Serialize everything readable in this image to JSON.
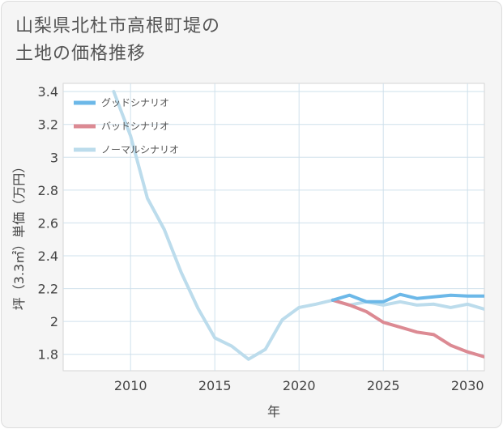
{
  "title_lines": [
    "山梨県北杜市高根町堤の",
    "土地の価格推移"
  ],
  "chart_data": {
    "type": "line",
    "xlabel": "年",
    "ylabel": "坪（3.3㎡）単価（万円）",
    "xlim": [
      2006,
      2031
    ],
    "ylim": [
      1.7,
      3.45
    ],
    "x_ticks": [
      2010,
      2015,
      2020,
      2025,
      2030
    ],
    "y_ticks": [
      1.8,
      2,
      2.2,
      2.4,
      2.6,
      2.8,
      3,
      3.2,
      3.4
    ],
    "x_tick_labels": [
      "2010",
      "2015",
      "2020",
      "2025",
      "2030"
    ],
    "y_tick_labels": [
      "1.8",
      "2",
      "2.2",
      "2.4",
      "2.6",
      "2.8",
      "3",
      "3.2",
      "3.4"
    ],
    "grid": true,
    "legend_position": "top-left",
    "series": [
      {
        "name": "グッドシナリオ",
        "color": "#6cb8e8",
        "x": [
          2022,
          2023,
          2024,
          2025,
          2026,
          2027,
          2028,
          2029,
          2030,
          2031
        ],
        "values": [
          2.13,
          2.16,
          2.12,
          2.12,
          2.165,
          2.14,
          2.15,
          2.16,
          2.155,
          2.155
        ]
      },
      {
        "name": "バッドシナリオ",
        "color": "#dc8a93",
        "x": [
          2022,
          2023,
          2024,
          2025,
          2026,
          2027,
          2028,
          2029,
          2030,
          2031
        ],
        "values": [
          2.13,
          2.1,
          2.06,
          1.995,
          1.965,
          1.935,
          1.92,
          1.855,
          1.815,
          1.785
        ]
      },
      {
        "name": "ノーマルシナリオ",
        "color": "#bcdcec",
        "x": [
          2009,
          2010,
          2011,
          2012,
          2013,
          2014,
          2015,
          2016,
          2017,
          2018,
          2019,
          2020,
          2021,
          2022,
          2023,
          2024,
          2025,
          2026,
          2027,
          2028,
          2029,
          2030,
          2031
        ],
        "values": [
          3.4,
          3.13,
          2.75,
          2.56,
          2.3,
          2.08,
          1.9,
          1.85,
          1.77,
          1.83,
          2.01,
          2.085,
          2.105,
          2.13,
          2.1,
          2.12,
          2.1,
          2.12,
          2.1,
          2.105,
          2.085,
          2.105,
          2.075
        ]
      }
    ]
  }
}
